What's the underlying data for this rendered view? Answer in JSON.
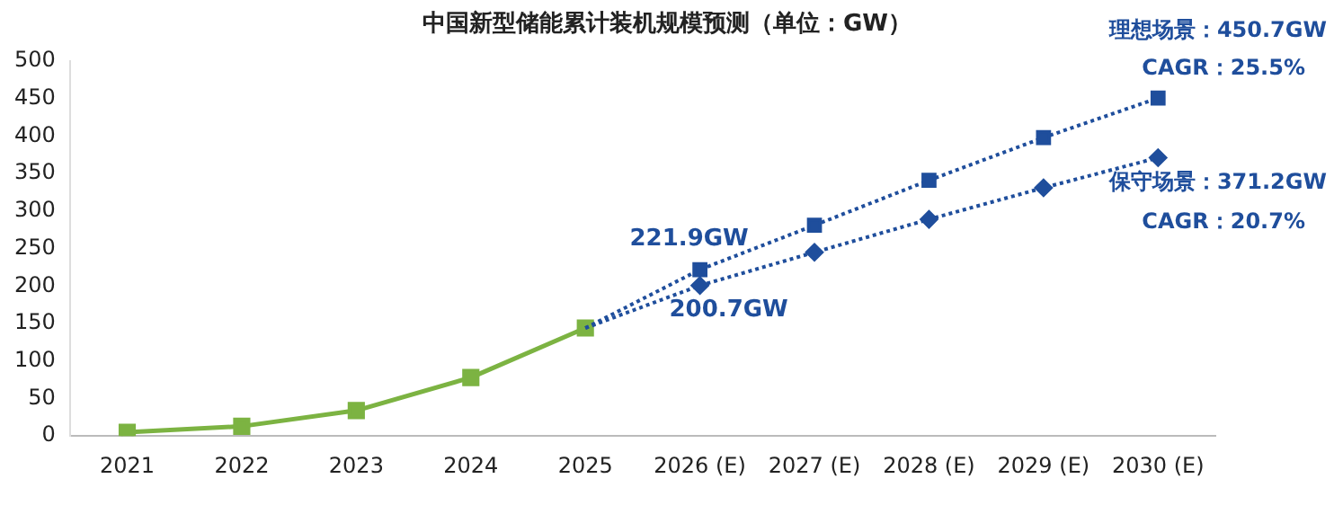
{
  "chart_data": {
    "type": "line",
    "title": "中国新型储能累计装机规模预测（单位：GW）",
    "categories": [
      "2021",
      "2022",
      "2023",
      "2024",
      "2025",
      "2026 (E)",
      "2027 (E)",
      "2028 (E)",
      "2029 (E)",
      "2030 (E)"
    ],
    "series": [
      {
        "color": "#7cb342",
        "marker": "square",
        "line_style": "solid",
        "values": [
          5,
          13,
          34,
          78,
          144,
          null,
          null,
          null,
          null,
          null
        ]
      },
      {
        "color": "#1f4e9c",
        "marker": "square",
        "line_style": "dotted",
        "values": [
          null,
          null,
          null,
          null,
          144,
          221.9,
          281,
          341,
          398,
          450.7
        ],
        "value_labels": [
          null,
          null,
          null,
          null,
          null,
          "221.9GW",
          null,
          null,
          null,
          null
        ]
      },
      {
        "color": "#1f4e9c",
        "marker": "diamond",
        "line_style": "dotted",
        "values": [
          null,
          null,
          null,
          null,
          144,
          200.7,
          245,
          289,
          331,
          371.2
        ],
        "value_labels": [
          null,
          null,
          null,
          null,
          null,
          "200.7GW",
          null,
          null,
          null,
          null
        ]
      }
    ],
    "annotations": [
      {
        "text": "理想场景：450.7GW",
        "x": "2030 (E)",
        "y": 450.7
      },
      {
        "text": "CAGR：25.5%",
        "x": "2030 (E)",
        "y": 450.7
      },
      {
        "text": "保守场景：371.2GW",
        "x": "2030 (E)",
        "y": 371.2
      },
      {
        "text": "CAGR：20.7%",
        "x": "2030 (E)",
        "y": 371.2
      }
    ],
    "ylim": [
      0,
      500
    ],
    "yticks": [
      0,
      50,
      100,
      150,
      200,
      250,
      300,
      350,
      400,
      450,
      500
    ],
    "grid": false,
    "legend": false
  }
}
